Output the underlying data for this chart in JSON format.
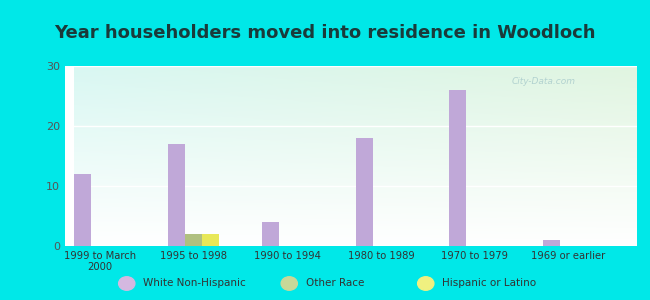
{
  "title": "Year householders moved into residence in Woodloch",
  "categories": [
    "1999 to March\n2000",
    "1995 to 1998",
    "1990 to 1994",
    "1980 to 1989",
    "1970 to 1979",
    "1969 or earlier"
  ],
  "white_values": [
    12,
    17,
    4,
    18,
    26,
    1
  ],
  "other_values": [
    0,
    2,
    0,
    0,
    0,
    0
  ],
  "hispanic_values": [
    0,
    2,
    0,
    0,
    0,
    0
  ],
  "white_color": "#c0a8d8",
  "other_color": "#b0c080",
  "hispanic_color": "#e8e858",
  "ylim": [
    0,
    30
  ],
  "yticks": [
    0,
    10,
    20,
    30
  ],
  "bar_width": 0.18,
  "background_outer": "#00e8e8",
  "title_fontsize": 13,
  "title_color": "#1a3a3a",
  "legend_labels": [
    "White Non-Hispanic",
    "Other Race",
    "Hispanic or Latino"
  ],
  "legend_white_color": "#d4b8e0",
  "legend_other_color": "#c8d898",
  "legend_hispanic_color": "#f0f080"
}
